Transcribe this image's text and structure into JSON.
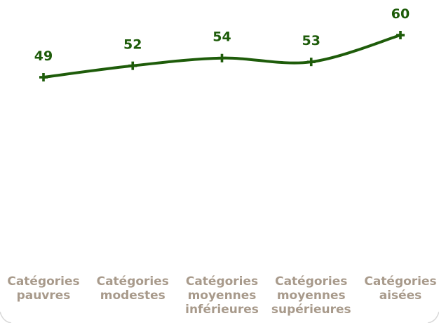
{
  "chart_data": {
    "type": "line",
    "categories": [
      [
        "Catégories",
        "pauvres"
      ],
      [
        "Catégories",
        "modestes"
      ],
      [
        "Catégories",
        "moyennes",
        "inférieures"
      ],
      [
        "Catégories",
        "moyennes",
        "supérieures"
      ],
      [
        "Catégories",
        "aisées"
      ]
    ],
    "series": [
      {
        "values": [
          49,
          52,
          54,
          53,
          60
        ]
      }
    ],
    "colors": {
      "line": "#1e5c0a",
      "data_label": "#1e5c0a",
      "tick_label": "#a89a8b",
      "frame": "#d9d9d9"
    },
    "marker": "cross",
    "smooth": true,
    "grid": false,
    "legend": "none",
    "axes_visible": false,
    "title": "",
    "xlabel": "",
    "ylabel": ""
  }
}
